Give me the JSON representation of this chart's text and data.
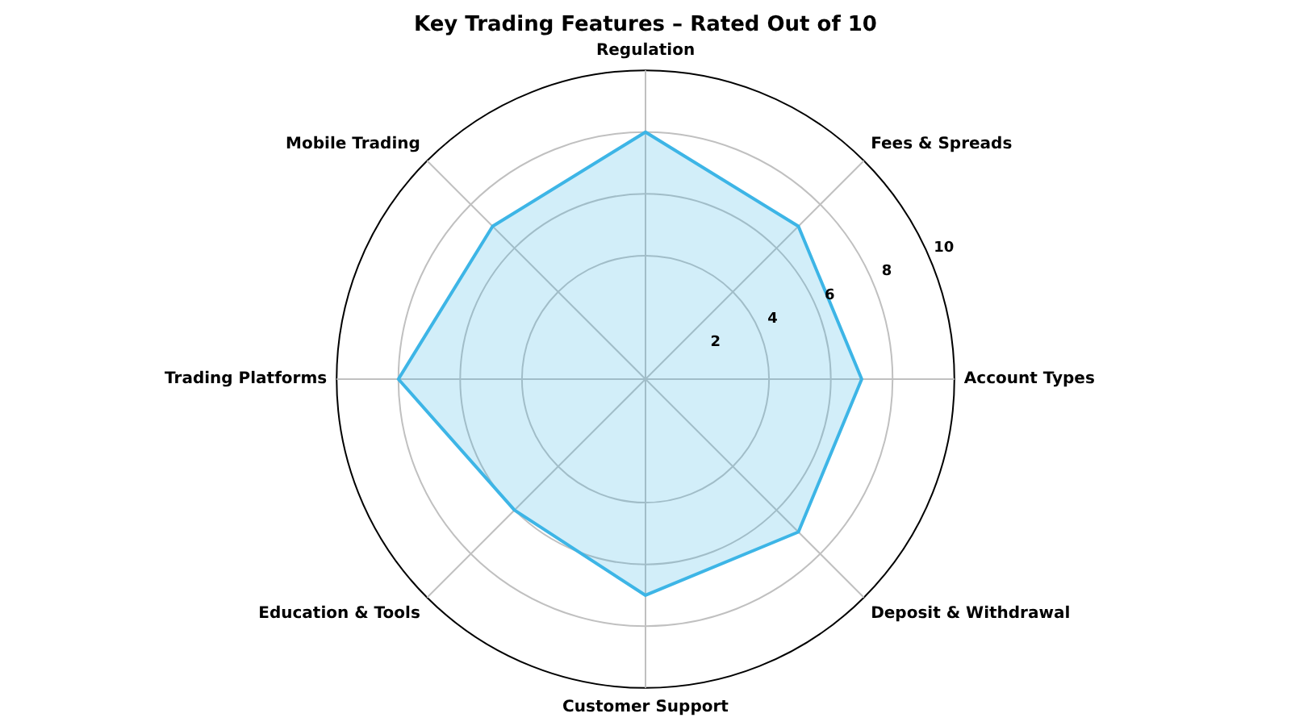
{
  "chart_data": {
    "type": "radar",
    "title": "Key Trading Features – Rated Out of 10",
    "categories": [
      "Regulation",
      "Fees & Spreads",
      "Account Types",
      "Deposit & Withdrawal",
      "Customer Support",
      "Education & Tools",
      "Trading Platforms",
      "Mobile Trading"
    ],
    "series": [
      {
        "color": "#3db5e6",
        "values": [
          8,
          7,
          7,
          7,
          7,
          6,
          8,
          7
        ]
      }
    ],
    "ylim": [
      0,
      10
    ],
    "yticks": [
      2,
      4,
      6,
      8,
      10
    ],
    "grid": true,
    "marker": "none"
  }
}
